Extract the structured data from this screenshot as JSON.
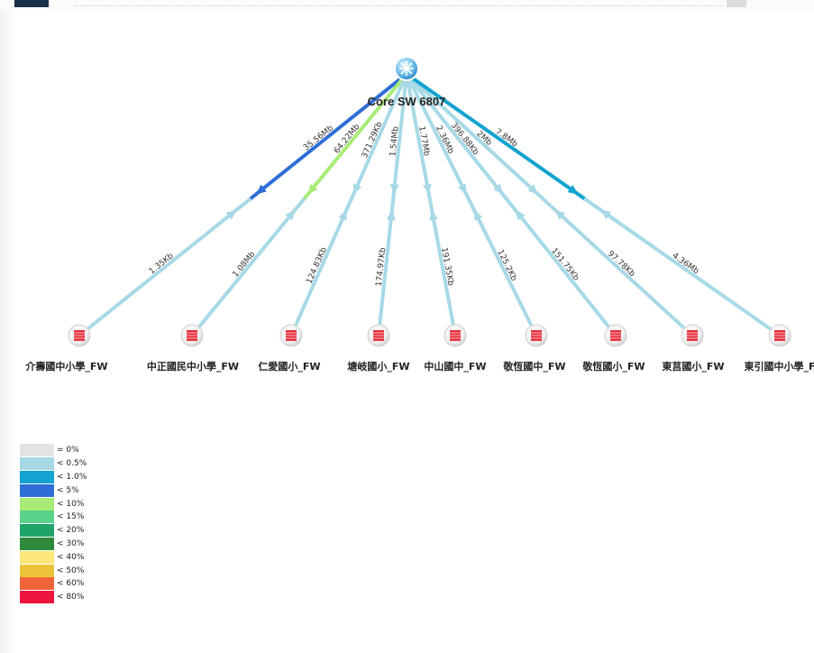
{
  "toolbar": {
    "logo_icon": "app-logo-icon",
    "search_field": "",
    "menu_icon": "menu-button-icon"
  },
  "topology": {
    "root": {
      "name": "Core SW 6807",
      "icon": "switch-icon"
    },
    "nodes": [
      {
        "name": "介壽國中小學_FW",
        "icon": "firewall-icon",
        "uplink": "35.56Mb",
        "downlink": "1.35Kb",
        "uplink_color": "#2e6ed6",
        "downlink_color": "#a7d9e6"
      },
      {
        "name": "中正國民中小學_FW",
        "icon": "firewall-icon",
        "uplink": "64.22Mb",
        "downlink": "1.08Mb",
        "uplink_color": "#a8ec78",
        "downlink_color": "#a7d9e6"
      },
      {
        "name": "仁愛國小_FW",
        "icon": "firewall-icon",
        "uplink": "371.29Kb",
        "downlink": "124.83Kb",
        "uplink_color": "#a7d9e6",
        "downlink_color": "#a7d9e6"
      },
      {
        "name": "塘岐國小_FW",
        "icon": "firewall-icon",
        "uplink": "1.54Mb",
        "downlink": "174.97Kb",
        "uplink_color": "#a7d9e6",
        "downlink_color": "#a7d9e6"
      },
      {
        "name": "中山國中_FW",
        "icon": "firewall-icon",
        "uplink": "1.77Mb",
        "downlink": "191.35Kb",
        "uplink_color": "#a7d9e6",
        "downlink_color": "#a7d9e6"
      },
      {
        "name": "敬恆國中_FW",
        "icon": "firewall-icon",
        "uplink": "2.36Mb",
        "downlink": "125.2Kb",
        "uplink_color": "#a7d9e6",
        "downlink_color": "#a7d9e6"
      },
      {
        "name": "敬恆國小_FW",
        "icon": "firewall-icon",
        "uplink": "396.88Kb",
        "downlink": "151.75Kb",
        "uplink_color": "#a7d9e6",
        "downlink_color": "#a7d9e6"
      },
      {
        "name": "東莒國小_FW",
        "icon": "firewall-icon",
        "uplink": "2Mb",
        "downlink": "97.78Kb",
        "uplink_color": "#a7d9e6",
        "downlink_color": "#a7d9e6"
      },
      {
        "name": "東引國中小學_F",
        "icon": "firewall-icon",
        "uplink": "7.8Mb",
        "downlink": "4.36Mb",
        "uplink_color": "#12a3d0",
        "downlink_color": "#a7d9e6"
      }
    ]
  },
  "legend": [
    {
      "label": "= 0%",
      "color": "#e3e3e3"
    },
    {
      "label": "< 0.5%",
      "color": "#a7d9e6"
    },
    {
      "label": "< 1.0%",
      "color": "#12a3d0"
    },
    {
      "label": "< 5%",
      "color": "#2e6ed6"
    },
    {
      "label": "< 10%",
      "color": "#a8ec78"
    },
    {
      "label": "< 15%",
      "color": "#5ad28a"
    },
    {
      "label": "< 20%",
      "color": "#20a46a"
    },
    {
      "label": "< 30%",
      "color": "#2f8a3a"
    },
    {
      "label": "< 40%",
      "color": "#fde67a"
    },
    {
      "label": "< 50%",
      "color": "#ecc43a"
    },
    {
      "label": "< 60%",
      "color": "#f0643a"
    },
    {
      "label": "< 80%",
      "color": "#ee1440"
    }
  ]
}
